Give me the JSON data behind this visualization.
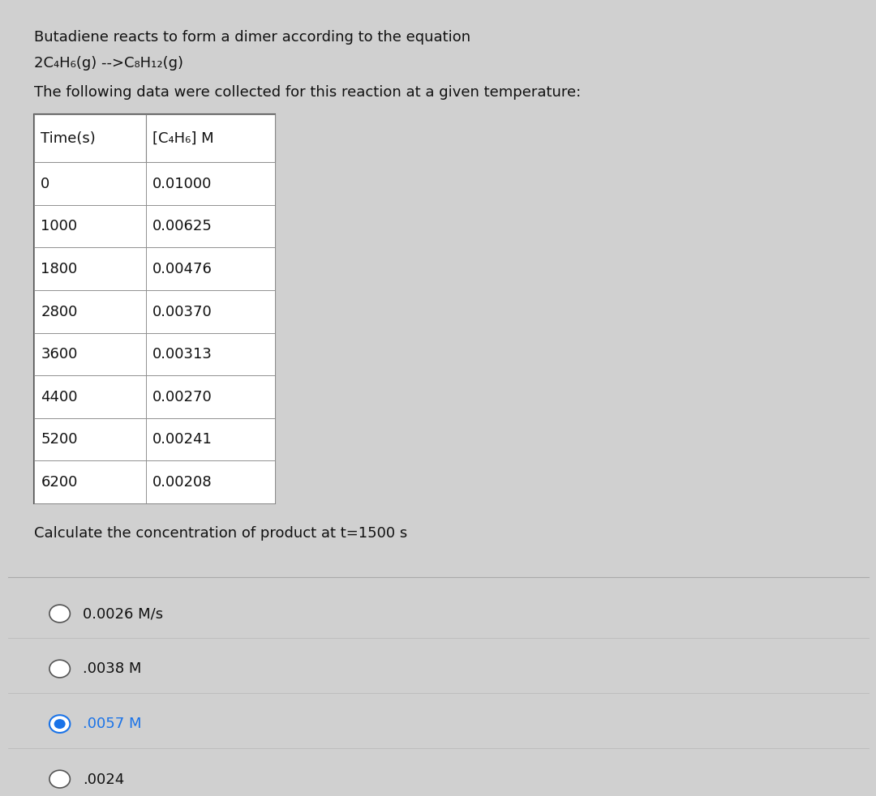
{
  "background_color": "#d0d0d0",
  "title_line1": "Butadiene reacts to form a dimer according to the equation",
  "title_line2": "2C₄H₆(g) -->C₈H₁₂(g)",
  "title_line3": "The following data were collected for this reaction at a given temperature:",
  "table_header": [
    "Time(s)",
    "[C₄H₆] M"
  ],
  "table_data": [
    [
      "0",
      "0.01000"
    ],
    [
      "1000",
      "0.00625"
    ],
    [
      "1800",
      "0.00476"
    ],
    [
      "2800",
      "0.00370"
    ],
    [
      "3600",
      "0.00313"
    ],
    [
      "4400",
      "0.00270"
    ],
    [
      "5200",
      "0.00241"
    ],
    [
      "6200",
      "0.00208"
    ]
  ],
  "question": "Calculate the concentration of product at t=1500 s",
  "options": [
    {
      "text": "0.0026 M/s",
      "selected": false
    },
    {
      "text": ".0038 M",
      "selected": false
    },
    {
      "text": ".0057 M",
      "selected": true
    },
    {
      "text": ".0024",
      "selected": false
    }
  ],
  "table_border_color": "#555555",
  "table_line_color": "#888888",
  "font_color": "#111111",
  "font_size_body": 13,
  "selected_color": "#1a73e8",
  "unselected_color": "#555555"
}
